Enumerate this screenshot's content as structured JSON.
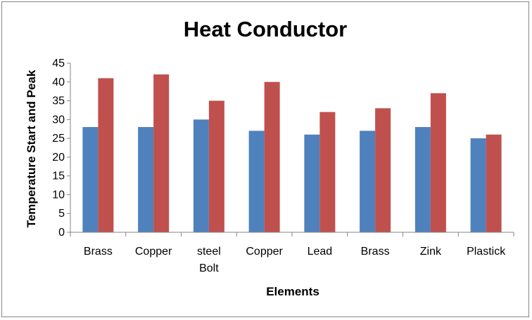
{
  "chart_data": {
    "type": "bar",
    "title": "Heat Conductor",
    "xlabel": "Elements",
    "ylabel": "Temperature Start and Peak",
    "categories": [
      [
        "Brass"
      ],
      [
        "Copper"
      ],
      [
        "steel",
        "Bolt"
      ],
      [
        "Copper"
      ],
      [
        "Lead"
      ],
      [
        "Brass"
      ],
      [
        "Zink"
      ],
      [
        "Plastick"
      ]
    ],
    "series": [
      {
        "values": [
          28,
          28,
          30,
          27,
          26,
          27,
          28,
          25
        ],
        "color": "#4F81BD"
      },
      {
        "values": [
          41,
          42,
          35,
          40,
          32,
          33,
          37,
          26
        ],
        "color": "#C0504D"
      }
    ],
    "ylim": [
      0,
      45
    ],
    "ytick_step": 5,
    "yticks": [
      "0",
      "5",
      "10",
      "15",
      "20",
      "25",
      "30",
      "35",
      "40",
      "45"
    ],
    "grid": false,
    "legend": "none"
  }
}
